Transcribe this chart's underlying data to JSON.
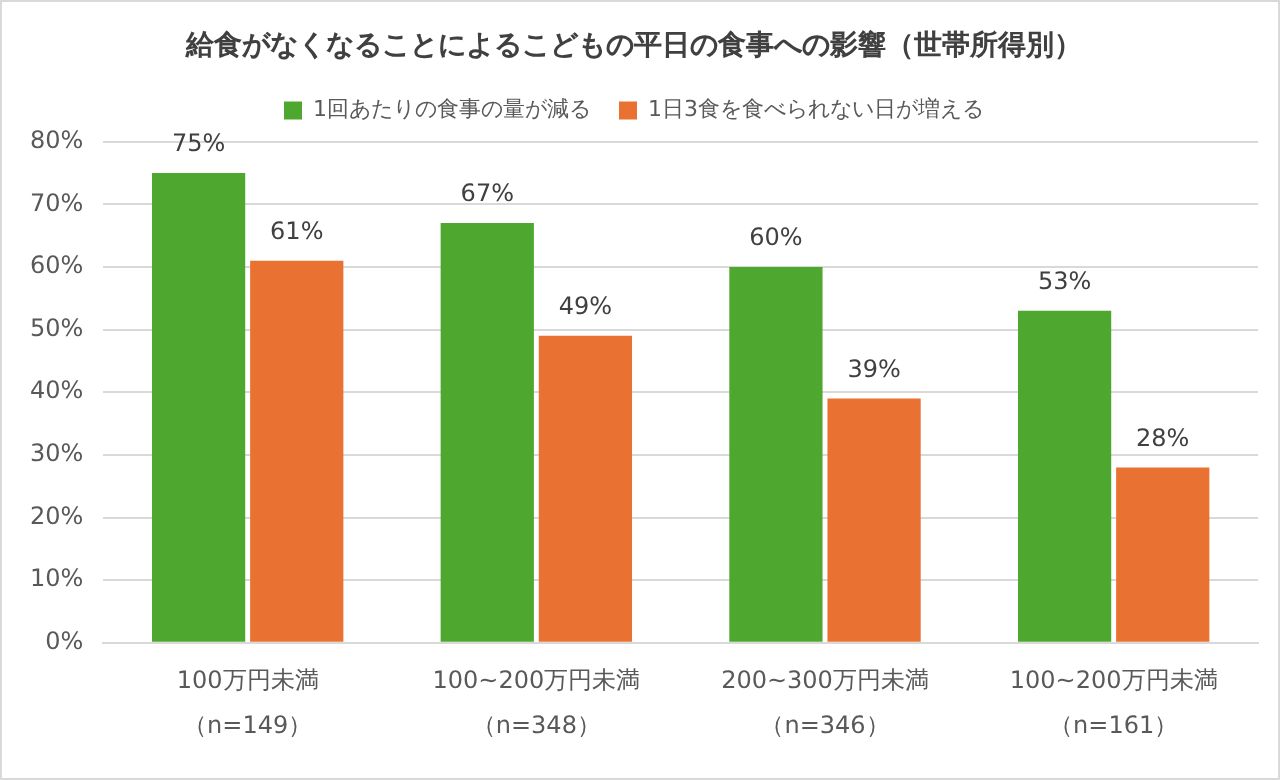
{
  "chart_data": {
    "type": "bar",
    "title": "給食がなくなることによるこどもの平日の食事への影響（世帯所得別）",
    "categories": [
      "100万円未満（n=149）",
      "100~200万円未満（n=348）",
      "200~300万円未満（n=346）",
      "100~200万円未満（n=161）"
    ],
    "series": [
      {
        "name": "1回あたりの食事の量が減る",
        "color": "#4ea72e",
        "values": [
          75,
          67,
          60,
          53
        ],
        "value_labels": [
          "75%",
          "67%",
          "60%",
          "53%"
        ]
      },
      {
        "name": "1日3食を食べられない日が増える",
        "color": "#e97132",
        "values": [
          61,
          49,
          39,
          28
        ],
        "value_labels": [
          "61%",
          "49%",
          "39%",
          "28%"
        ]
      }
    ],
    "ylim": [
      0,
      80
    ],
    "yticks": [
      {
        "value": 0,
        "label": "0%"
      },
      {
        "value": 10,
        "label": "10%"
      },
      {
        "value": 20,
        "label": "20%"
      },
      {
        "value": 30,
        "label": "30%"
      },
      {
        "value": 40,
        "label": "40%"
      },
      {
        "value": 50,
        "label": "50%"
      },
      {
        "value": 60,
        "label": "60%"
      },
      {
        "value": 70,
        "label": "70%"
      },
      {
        "value": 80,
        "label": "80%"
      }
    ],
    "grid": "y",
    "legend": "top"
  }
}
